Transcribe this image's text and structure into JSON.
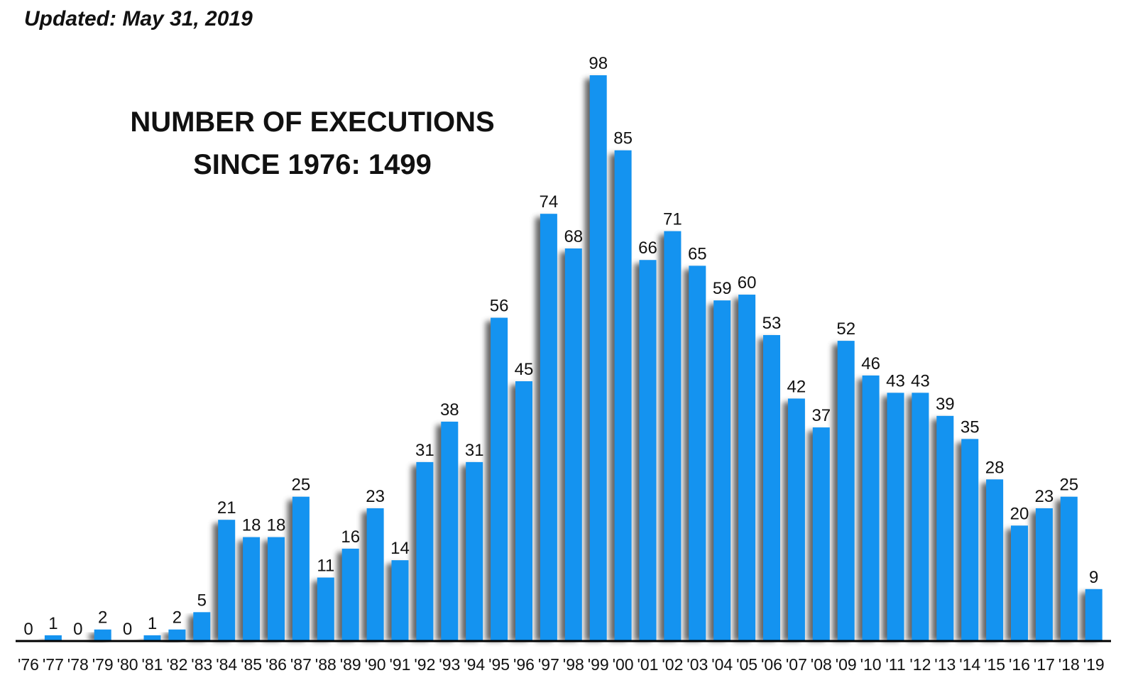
{
  "header": {
    "updated": "Updated: May 31, 2019"
  },
  "title": {
    "line1": "NUMBER OF EXECUTIONS",
    "line2": "SINCE 1976: 1499"
  },
  "colors": {
    "bar": "#1493f0",
    "shadow": "#4a4a4a",
    "axis": "#000000",
    "text": "#111111"
  },
  "chart_data": {
    "type": "bar",
    "title": "NUMBER OF EXECUTIONS SINCE 1976: 1499",
    "xlabel": "",
    "ylabel": "",
    "ylim": [
      0,
      100
    ],
    "grid": false,
    "categories": [
      "'76",
      "'77",
      "'78",
      "'79",
      "'80",
      "'81",
      "'82",
      "'83",
      "'84",
      "'85",
      "'86",
      "'87",
      "'88",
      "'89",
      "'90",
      "'91",
      "'92",
      "'93",
      "'94",
      "'95",
      "'96",
      "'97",
      "'98",
      "'99",
      "'00",
      "'01",
      "'02",
      "'03",
      "'04",
      "'05",
      "'06",
      "'07",
      "'08",
      "'09",
      "'10",
      "'11",
      "'12",
      "'13",
      "'14",
      "'15",
      "'16",
      "'17",
      "'18",
      "'19"
    ],
    "values": [
      0,
      1,
      0,
      2,
      0,
      1,
      2,
      5,
      21,
      18,
      18,
      25,
      11,
      16,
      23,
      14,
      31,
      38,
      31,
      56,
      45,
      74,
      68,
      98,
      85,
      66,
      71,
      65,
      59,
      60,
      53,
      42,
      37,
      52,
      46,
      43,
      43,
      39,
      35,
      28,
      20,
      23,
      25,
      9
    ]
  }
}
